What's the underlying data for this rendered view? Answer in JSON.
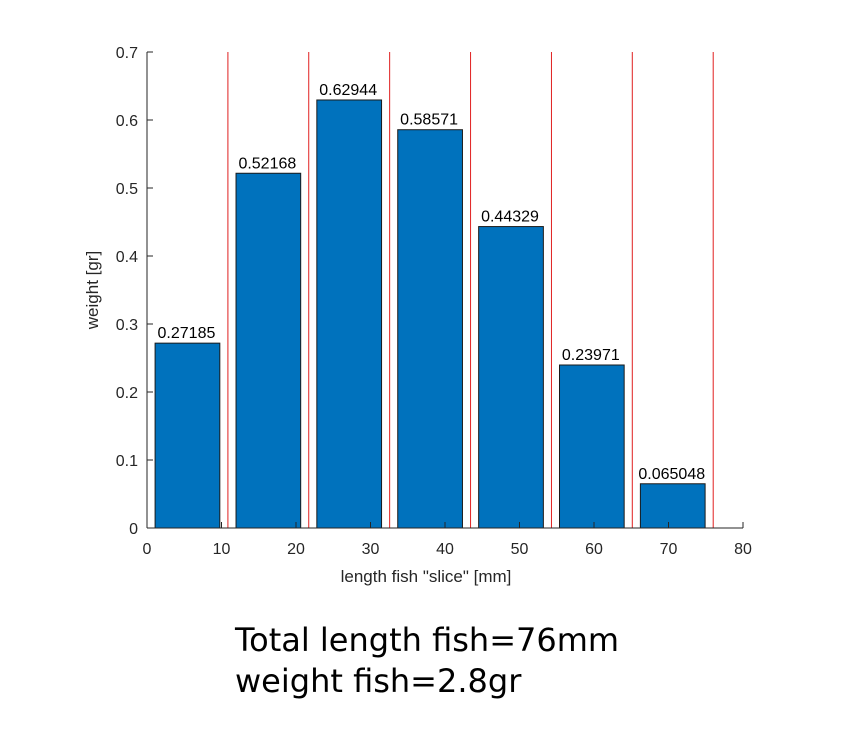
{
  "chart_data": {
    "type": "bar",
    "xlabel": "length fish \"slice\" [mm]",
    "ylabel": "weight [gr]",
    "xlim": [
      0,
      80
    ],
    "ylim": [
      0,
      0.7
    ],
    "x_ticks": [
      0,
      10,
      20,
      30,
      40,
      50,
      60,
      70,
      80
    ],
    "y_ticks": [
      0,
      0.1,
      0.2,
      0.3,
      0.4,
      0.5,
      0.6,
      0.7
    ],
    "y_tick_labels": [
      "0",
      "0.1",
      "0.2",
      "0.3",
      "0.4",
      "0.5",
      "0.6",
      "0.7"
    ],
    "x": [
      5.43,
      16.29,
      27.14,
      38.0,
      48.86,
      59.71,
      70.57
    ],
    "values": [
      0.27185,
      0.52168,
      0.62944,
      0.58571,
      0.44329,
      0.23971,
      0.065048
    ],
    "data_labels": [
      "0.27185",
      "0.52168",
      "0.62944",
      "0.58571",
      "0.44329",
      "0.23971",
      "0.065048"
    ],
    "slice_boundaries": [
      0,
      10.86,
      21.71,
      32.57,
      43.43,
      54.29,
      65.14,
      76.0
    ],
    "bar_color": "#0072bd",
    "boundary_color": "#e02020",
    "grid": false
  },
  "caption": {
    "line1": "Total length fish=76mm",
    "line2": "weight fish=2.8gr"
  }
}
